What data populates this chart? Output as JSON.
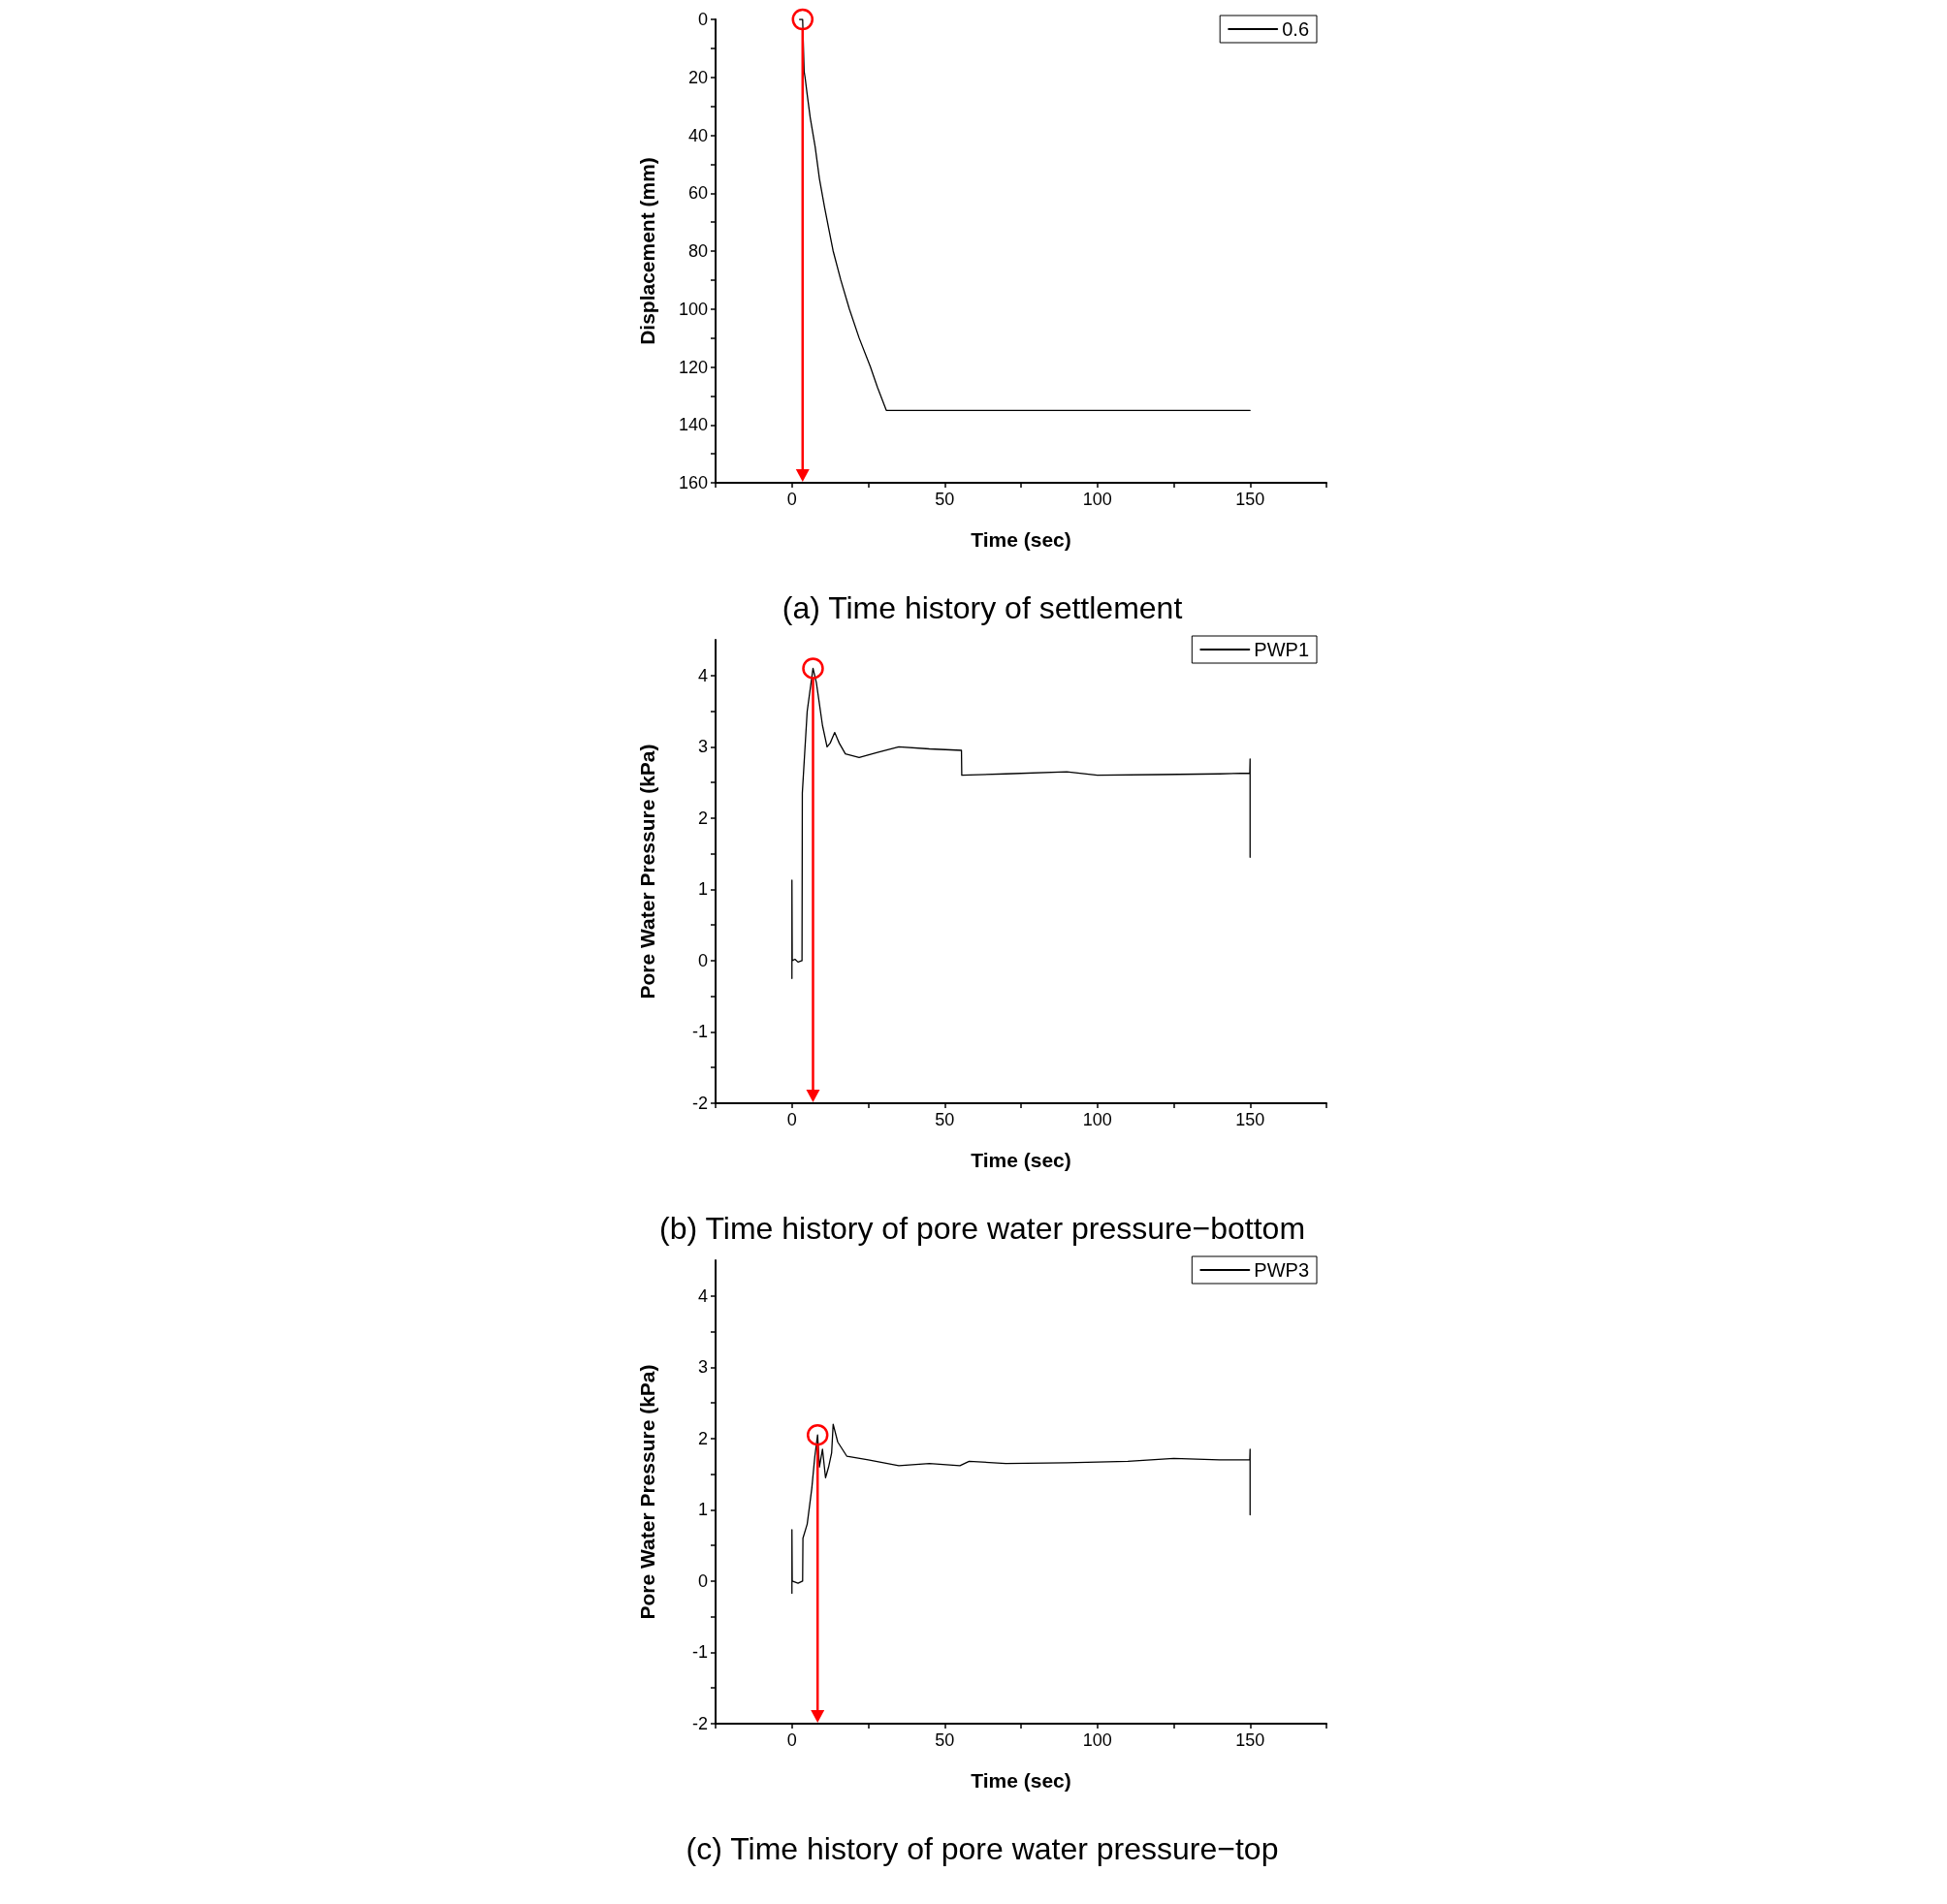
{
  "chart_data": [
    {
      "type": "line",
      "title": "(a) Time history of settlement",
      "xlabel": "Time (sec)",
      "ylabel": "Displacement (mm)",
      "legend": "top right",
      "grid": false,
      "marker": "none",
      "line_style": "solid",
      "xlim": [
        -25,
        175
      ],
      "xticks": [
        {
          "value": -25,
          "label": null
        },
        0,
        {
          "value": 25,
          "label": null
        },
        50,
        {
          "value": 75,
          "label": null
        },
        100,
        {
          "value": 125,
          "label": null
        },
        150,
        {
          "value": 175,
          "label": null
        }
      ],
      "ylim": [
        160,
        0
      ],
      "yticks": [
        0,
        {
          "value": 10,
          "label": null
        },
        20,
        {
          "value": 30,
          "label": null
        },
        40,
        {
          "value": 50,
          "label": null
        },
        60,
        {
          "value": 70,
          "label": null
        },
        80,
        {
          "value": 90,
          "label": null
        },
        100,
        {
          "value": 110,
          "label": null
        },
        120,
        {
          "value": 130,
          "label": null
        },
        140,
        {
          "value": 150,
          "label": null
        },
        160
      ],
      "ref_lines": [
        {
          "axis": "x",
          "value": 3.5,
          "color": "#ff0000"
        }
      ],
      "series": [
        {
          "name": "0.6",
          "color": "#000000",
          "x": [
            2.5,
            3.5,
            4,
            4.3,
            5,
            6,
            7.6,
            9,
            10.7,
            12,
            13.5,
            16,
            18.8,
            22,
            25.7,
            28,
            30.9,
            35,
            150
          ],
          "values": [
            0,
            0,
            18,
            20,
            26,
            34,
            44,
            55,
            65,
            72,
            80,
            90,
            100,
            110,
            120,
            127,
            135,
            135,
            135
          ]
        }
      ]
    },
    {
      "type": "line",
      "title": "(b) Time history of pore water pressure−bottom",
      "xlabel": "Time (sec)",
      "ylabel": "Pore Water Pressure (kPa)",
      "legend": "top right",
      "grid": false,
      "marker": "none",
      "line_style": "solid",
      "xlim": [
        -25,
        175
      ],
      "xticks": [
        {
          "value": -25,
          "label": null
        },
        0,
        {
          "value": 25,
          "label": null
        },
        50,
        {
          "value": 75,
          "label": null
        },
        100,
        {
          "value": 125,
          "label": null
        },
        150,
        {
          "value": 175,
          "label": null
        }
      ],
      "ylim": [
        -2,
        4.5
      ],
      "yticks": [
        -2,
        {
          "value": -1.5,
          "label": null
        },
        -1,
        {
          "value": -0.5,
          "label": null
        },
        0,
        {
          "value": 0.5,
          "label": null
        },
        1,
        {
          "value": 1.5,
          "label": null
        },
        2,
        {
          "value": 2.5,
          "label": null
        },
        3,
        {
          "value": 3.5,
          "label": null
        },
        4
      ],
      "ref_lines": [
        {
          "axis": "x",
          "value": 6.9,
          "color": "#ff0000"
        }
      ],
      "series": [
        {
          "name": "PWP1",
          "color": "#000000",
          "x": [
            0,
            0,
            0.1,
            1,
            2,
            3.3,
            3.4,
            4.3,
            5,
            6.9,
            8,
            10,
            11.5,
            12.5,
            14,
            15.5,
            17.5,
            22,
            28,
            35,
            45,
            55.5,
            55.6,
            70,
            90,
            100,
            120,
            140,
            149.9,
            150,
            150
          ],
          "values": [
            -0.25,
            1.13,
            0,
            0.02,
            -0.02,
            0,
            2.35,
            3.0,
            3.5,
            4.1,
            3.9,
            3.3,
            3.0,
            3.05,
            3.2,
            3.05,
            2.9,
            2.85,
            2.92,
            3.0,
            2.97,
            2.95,
            2.6,
            2.62,
            2.65,
            2.6,
            2.61,
            2.62,
            2.63,
            2.83,
            1.45
          ]
        }
      ]
    },
    {
      "type": "line",
      "title": "(c) Time history of pore water pressure−top",
      "xlabel": "Time (sec)",
      "ylabel": "Pore Water Pressure (kPa)",
      "legend": "top right",
      "grid": false,
      "marker": "none",
      "line_style": "solid",
      "xlim": [
        -25,
        175
      ],
      "xticks": [
        {
          "value": -25,
          "label": null
        },
        0,
        {
          "value": 25,
          "label": null
        },
        50,
        {
          "value": 75,
          "label": null
        },
        100,
        {
          "value": 125,
          "label": null
        },
        150,
        {
          "value": 175,
          "label": null
        }
      ],
      "ylim": [
        -2,
        4.5
      ],
      "yticks": [
        -2,
        {
          "value": -1.5,
          "label": null
        },
        -1,
        {
          "value": -0.5,
          "label": null
        },
        0,
        {
          "value": 0.5,
          "label": null
        },
        1,
        {
          "value": 1.5,
          "label": null
        },
        2,
        {
          "value": 2.5,
          "label": null
        },
        3,
        {
          "value": 3.5,
          "label": null
        },
        4
      ],
      "ref_lines": [
        {
          "axis": "x",
          "value": 8.4,
          "color": "#ff0000"
        }
      ],
      "series": [
        {
          "name": "PWP3",
          "color": "#000000",
          "x": [
            0,
            0,
            0.1,
            2,
            3.5,
            3.6,
            5,
            6.5,
            7.5,
            8.4,
            9,
            10,
            11,
            12,
            13,
            13.5,
            15,
            18,
            25,
            35,
            45,
            55,
            58,
            70,
            90,
            110,
            125,
            140,
            149.9,
            150,
            150
          ],
          "values": [
            -0.17,
            0.72,
            0,
            -0.03,
            0,
            0.6,
            0.8,
            1.3,
            1.75,
            2.05,
            1.6,
            1.85,
            1.45,
            1.6,
            1.8,
            2.2,
            1.95,
            1.75,
            1.7,
            1.62,
            1.65,
            1.62,
            1.68,
            1.65,
            1.66,
            1.68,
            1.72,
            1.7,
            1.7,
            1.85,
            0.93
          ]
        }
      ]
    }
  ]
}
